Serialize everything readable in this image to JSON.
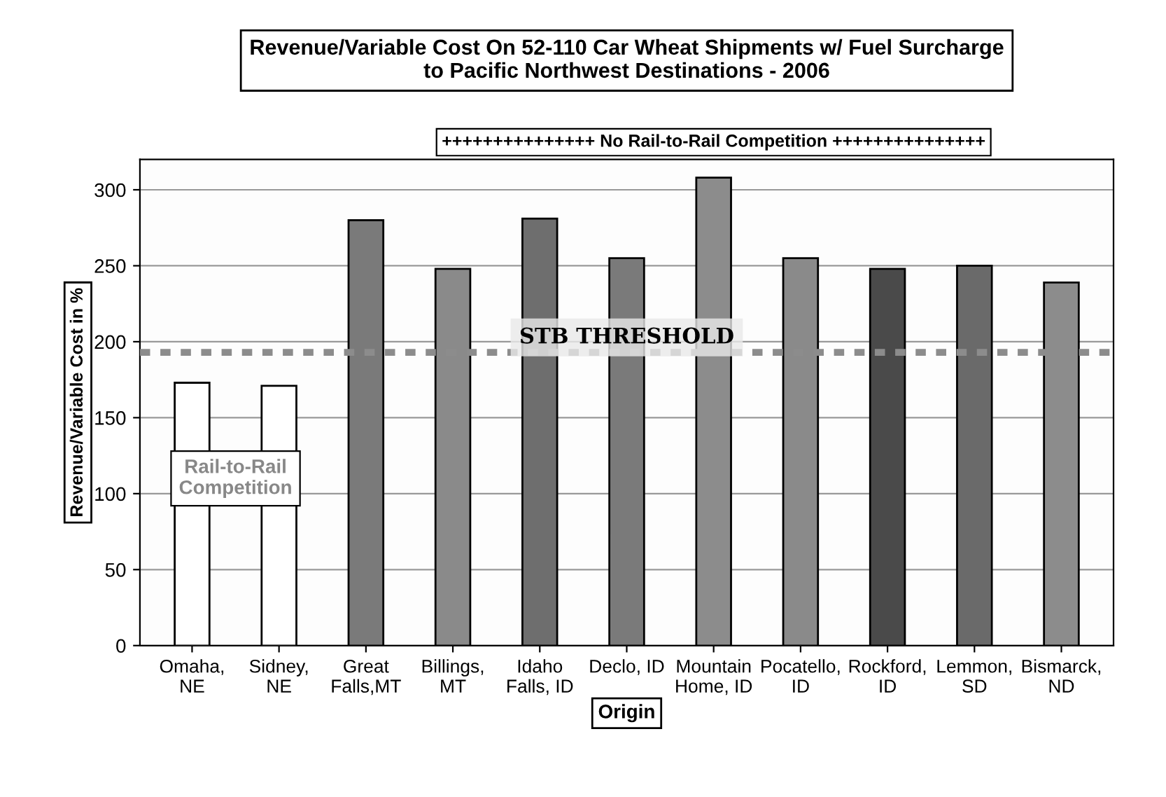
{
  "chart_data": {
    "type": "bar",
    "title": "Revenue/Variable Cost On 52-110 Car Wheat Shipments w/ Fuel Surcharge\nto Pacific Northwest Destinations - 2006",
    "xlabel": "Origin",
    "ylabel": "Revenue/Variable Cost in %",
    "categories": [
      "Omaha,\nNE",
      "Sidney,\nNE",
      "Great\nFalls,MT",
      "Billings,\nMT",
      "Idaho\nFalls, ID",
      "Declo, ID",
      "Mountain\nHome, ID",
      "Pocatello,\nID",
      "Rockford,\nID",
      "Lemmon,\nSD",
      "Bismarck,\nND"
    ],
    "values": [
      173,
      171,
      280,
      248,
      281,
      255,
      308,
      255,
      248,
      250,
      239
    ],
    "colors": [
      "#ffffff",
      "#ffffff",
      "#7a7a7a",
      "#8a8a8a",
      "#6e6e6e",
      "#7a7a7a",
      "#8c8c8c",
      "#8a8a8a",
      "#4a4a4a",
      "#6a6a6a",
      "#8c8c8c"
    ],
    "ylim": [
      0,
      320
    ],
    "yticks": [
      0,
      50,
      100,
      150,
      200,
      250,
      300
    ],
    "grid": "y",
    "ref_lines": [
      {
        "axis": "y",
        "value": 193,
        "label": "STB THRESHOLD",
        "color": "#8c8c8c",
        "line_style": "dotted"
      }
    ],
    "annotations": [
      {
        "text": "+++++++++++++++ No Rail-to-Rail Competition +++++++++++++++",
        "x": "Mountain\nHome, ID",
        "y": 308
      },
      "Rail-to-Rail\nCompetition"
    ]
  }
}
